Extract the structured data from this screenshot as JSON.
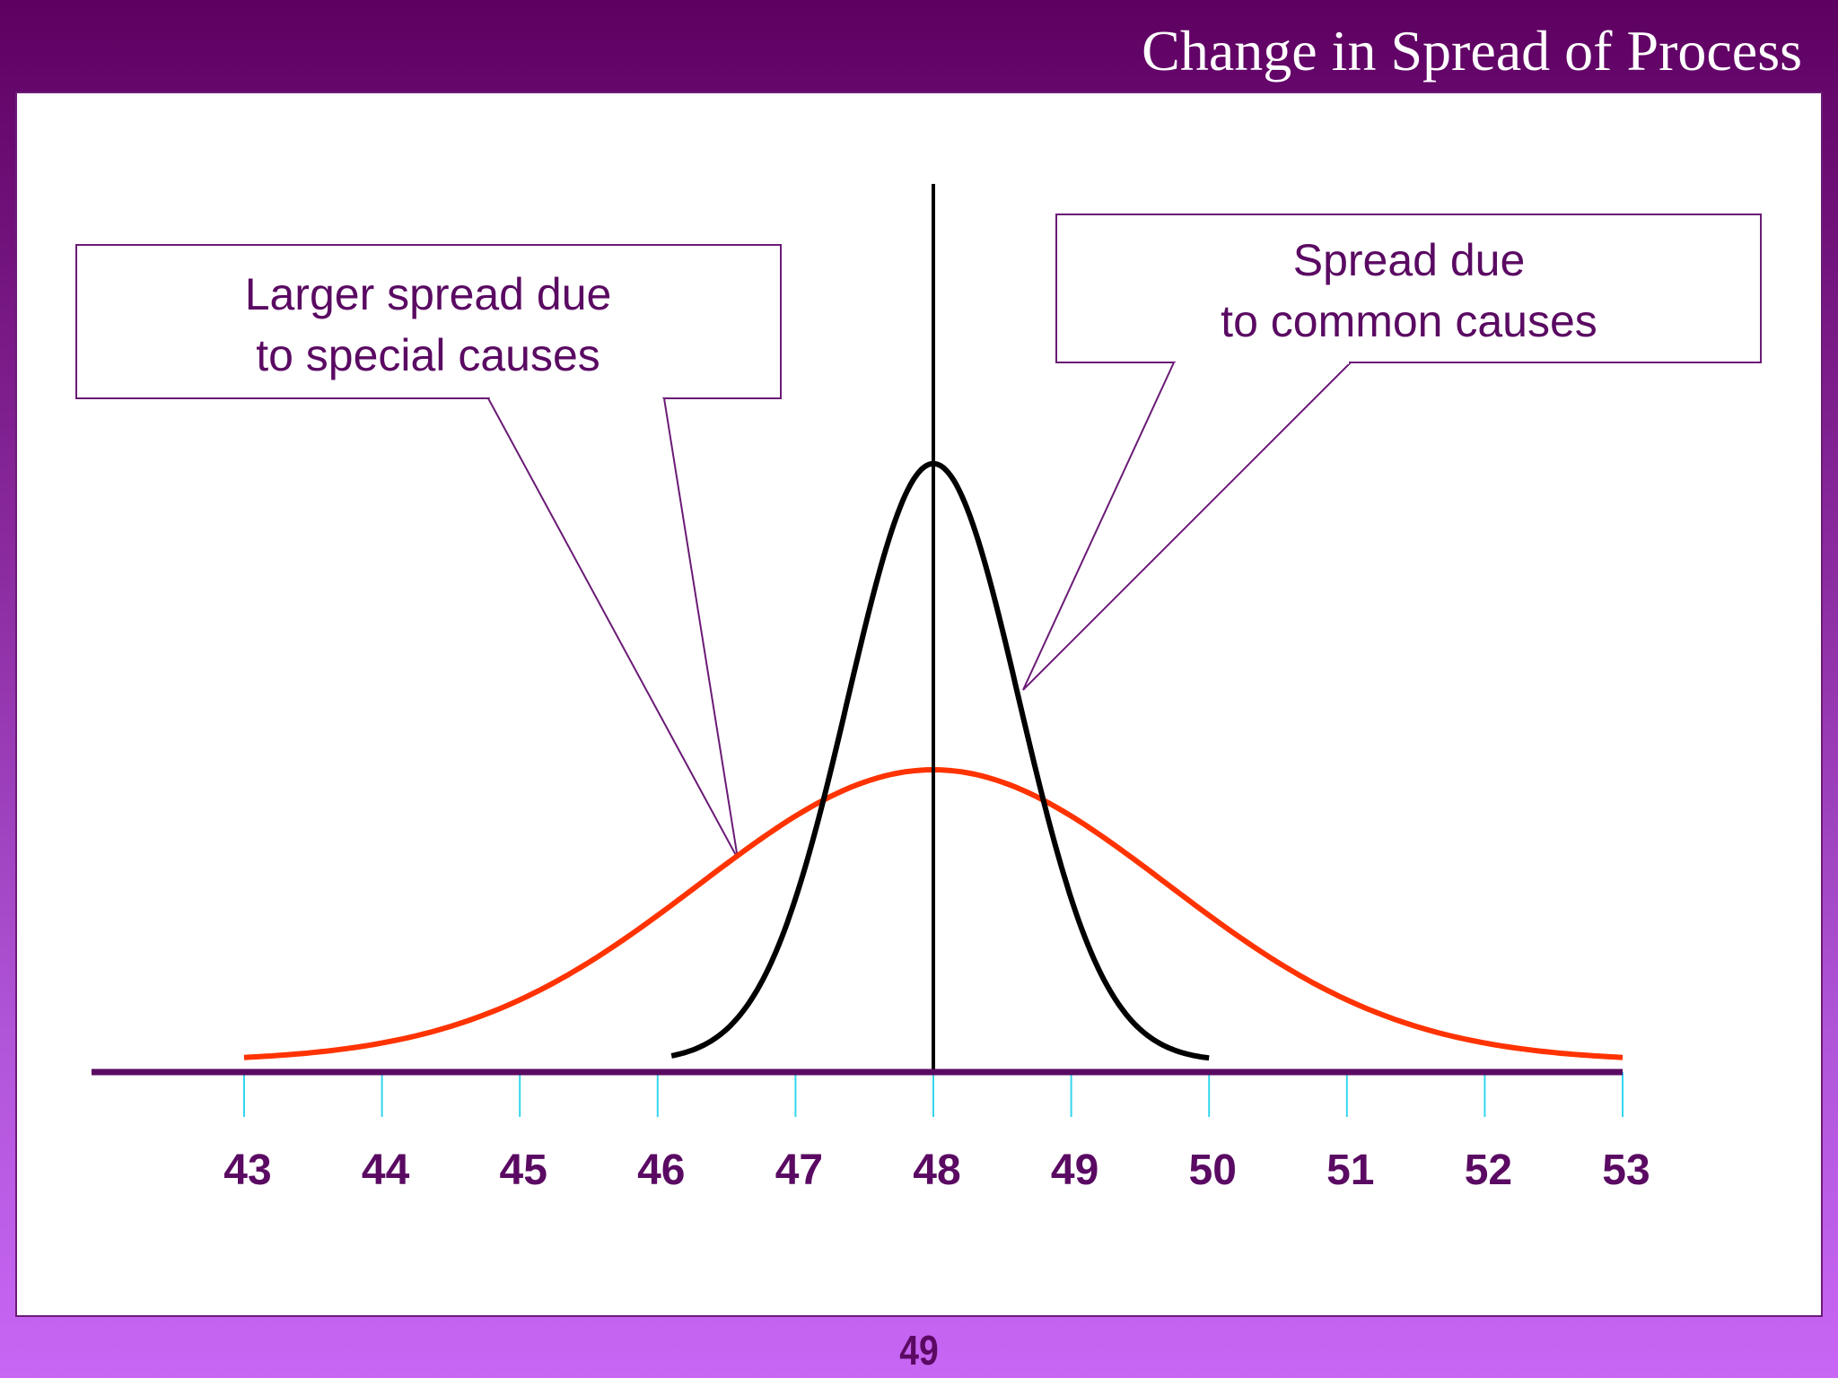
{
  "title": "Change in Spread of Process",
  "page_number": "49",
  "colors": {
    "header": "#5e0061",
    "axis": "#5a0a62",
    "tick": "#33d6f0",
    "wide_curve": "#ff3300",
    "narrow_curve": "#000000",
    "callout_border": "#6a1b75",
    "text": "#5a0a62"
  },
  "callouts": {
    "special": {
      "line1": "Larger spread due",
      "line2": "to special causes"
    },
    "common": {
      "line1": "Spread due",
      "line2": "to common causes"
    }
  },
  "chart_data": {
    "type": "line",
    "x_ticks": [
      "43",
      "44",
      "45",
      "46",
      "47",
      "48",
      "49",
      "50",
      "51",
      "52",
      "53"
    ],
    "xlim": [
      43,
      53
    ],
    "center_line": 48,
    "series": [
      {
        "mean": 48,
        "sd": 1.7,
        "range": [
          43,
          53
        ],
        "relative_height": 1.0
      },
      {
        "mean": 48,
        "sd": 0.62,
        "range": [
          46.1,
          50.0
        ],
        "relative_height": 2.05
      }
    ]
  }
}
